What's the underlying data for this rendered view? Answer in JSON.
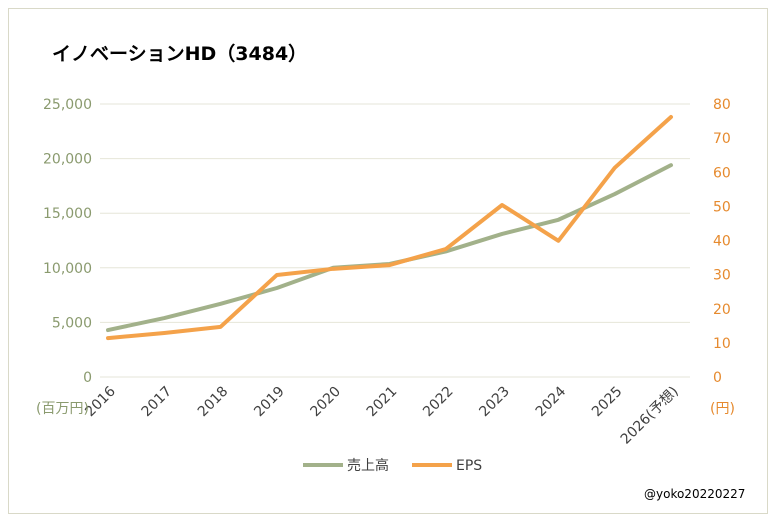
{
  "chart_data": {
    "type": "line",
    "title": "イノベーションHD（3484）",
    "categories": [
      "2016",
      "2017",
      "2018",
      "2019",
      "2020",
      "2021",
      "2022",
      "2023",
      "2024",
      "2025",
      "2026(予想)"
    ],
    "series": [
      {
        "name": "売上高",
        "axis": "left",
        "color": "#a2b18a",
        "values": [
          4300,
          5400,
          6700,
          8150,
          10000,
          10350,
          11500,
          13100,
          14400,
          16750,
          19400
        ]
      },
      {
        "name": "EPS",
        "axis": "right",
        "color": "#f4a24a",
        "values": [
          11.4,
          12.9,
          14.7,
          29.9,
          31.7,
          32.8,
          37.5,
          50.4,
          39.9,
          61.3,
          76.2
        ]
      }
    ],
    "left_axis": {
      "unit_label": "(百万円)",
      "ylim": [
        0,
        25000
      ],
      "ticks": [
        "0",
        "5,000",
        "10,000",
        "15,000",
        "20,000",
        "25,000"
      ],
      "color": "#8a9a6e"
    },
    "right_axis": {
      "unit_label": "(円)",
      "ylim": [
        0,
        80
      ],
      "ticks": [
        "0",
        "10",
        "20",
        "30",
        "40",
        "50",
        "60",
        "70",
        "80"
      ],
      "color": "#e68a2e"
    },
    "grid": true,
    "legend_position": "bottom"
  },
  "credit": "@yoko20220227"
}
